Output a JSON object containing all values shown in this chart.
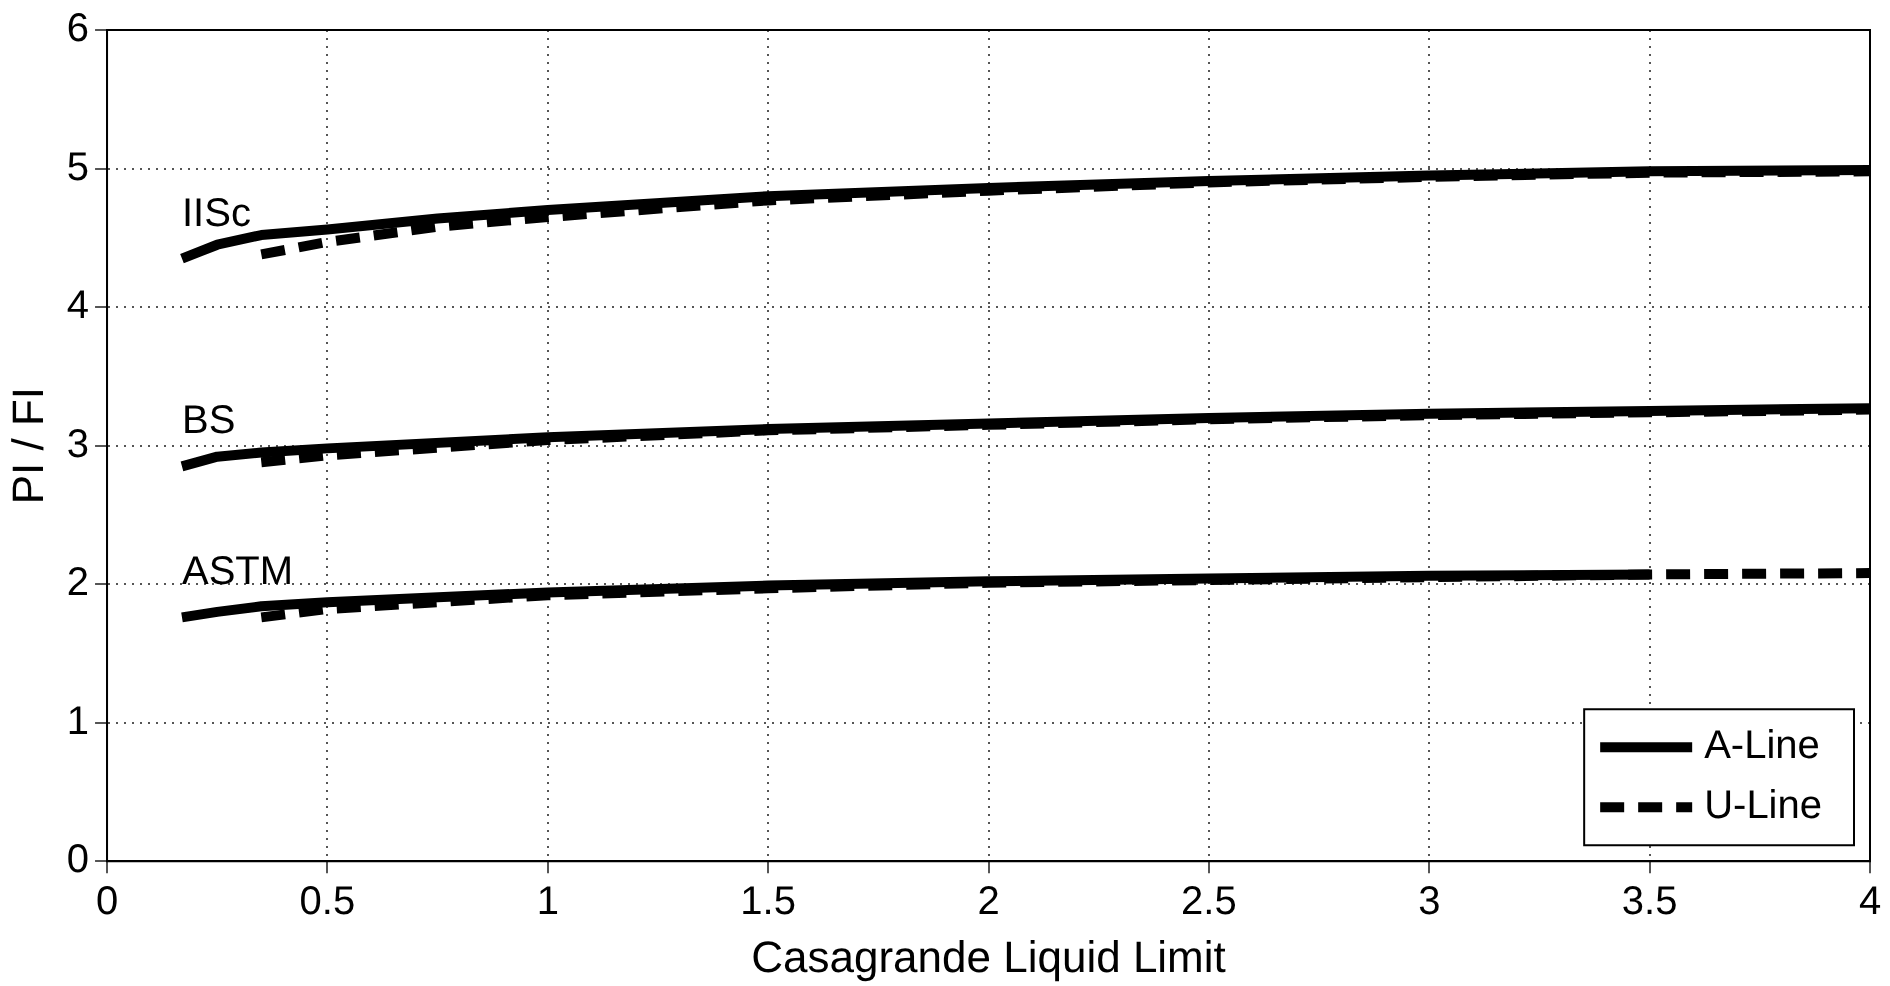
{
  "chart_data": {
    "type": "line",
    "xlabel": "Casagrande Liquid Limit",
    "ylabel": "PI / FI",
    "xlim": [
      0,
      4
    ],
    "xticks": [
      0,
      0.5,
      1,
      1.5,
      2,
      2.5,
      3,
      3.5,
      4
    ],
    "ylim": [
      0,
      6
    ],
    "yticks": [
      0,
      1,
      2,
      3,
      4,
      5,
      6
    ],
    "grid": true,
    "legend": "bottom right",
    "annotations": [
      "IISc",
      "BS",
      "ASTM"
    ],
    "series": [
      {
        "name": "A-Line",
        "color": "#000000",
        "line_style": "solid",
        "x": [
          0.17,
          0.25,
          0.35,
          0.5,
          0.75,
          1,
          1.5,
          2,
          2.5,
          3,
          3.5,
          4
        ],
        "values": [
          4.35,
          4.45,
          4.52,
          4.56,
          4.64,
          4.7,
          4.8,
          4.86,
          4.91,
          4.95,
          4.98,
          4.99
        ]
      },
      {
        "name": "U-Line",
        "color": "#000000",
        "line_style": "dashed",
        "x": [
          0.35,
          0.5,
          0.75,
          1,
          1.5,
          2,
          2.5,
          3,
          3.5,
          4
        ],
        "values": [
          4.38,
          4.47,
          4.58,
          4.65,
          4.77,
          4.84,
          4.9,
          4.94,
          4.97,
          4.98
        ]
      },
      {
        "color": "#000000",
        "line_style": "solid",
        "x": [
          0.17,
          0.25,
          0.35,
          0.5,
          1,
          1.5,
          2,
          2.5,
          3,
          3.5,
          4
        ],
        "values": [
          2.85,
          2.92,
          2.95,
          2.98,
          3.06,
          3.12,
          3.16,
          3.2,
          3.23,
          3.25,
          3.27
        ]
      },
      {
        "color": "#000000",
        "line_style": "dashed",
        "x": [
          0.35,
          0.5,
          1,
          1.5,
          2,
          2.5,
          3,
          3.5,
          4
        ],
        "values": [
          2.88,
          2.93,
          3.04,
          3.11,
          3.15,
          3.19,
          3.22,
          3.24,
          3.26
        ]
      },
      {
        "color": "#000000",
        "line_style": "solid",
        "x": [
          0.17,
          0.25,
          0.35,
          0.5,
          1,
          1.5,
          2,
          2.5,
          3,
          3.5
        ],
        "values": [
          1.76,
          1.8,
          1.84,
          1.87,
          1.94,
          1.99,
          2.02,
          2.04,
          2.06,
          2.07
        ]
      },
      {
        "color": "#000000",
        "line_style": "dashed",
        "x": [
          0.35,
          0.5,
          1,
          1.5,
          2,
          2.5,
          3,
          3.5,
          4
        ],
        "values": [
          1.76,
          1.82,
          1.92,
          1.97,
          2.01,
          2.03,
          2.05,
          2.07,
          2.08
        ]
      }
    ]
  }
}
